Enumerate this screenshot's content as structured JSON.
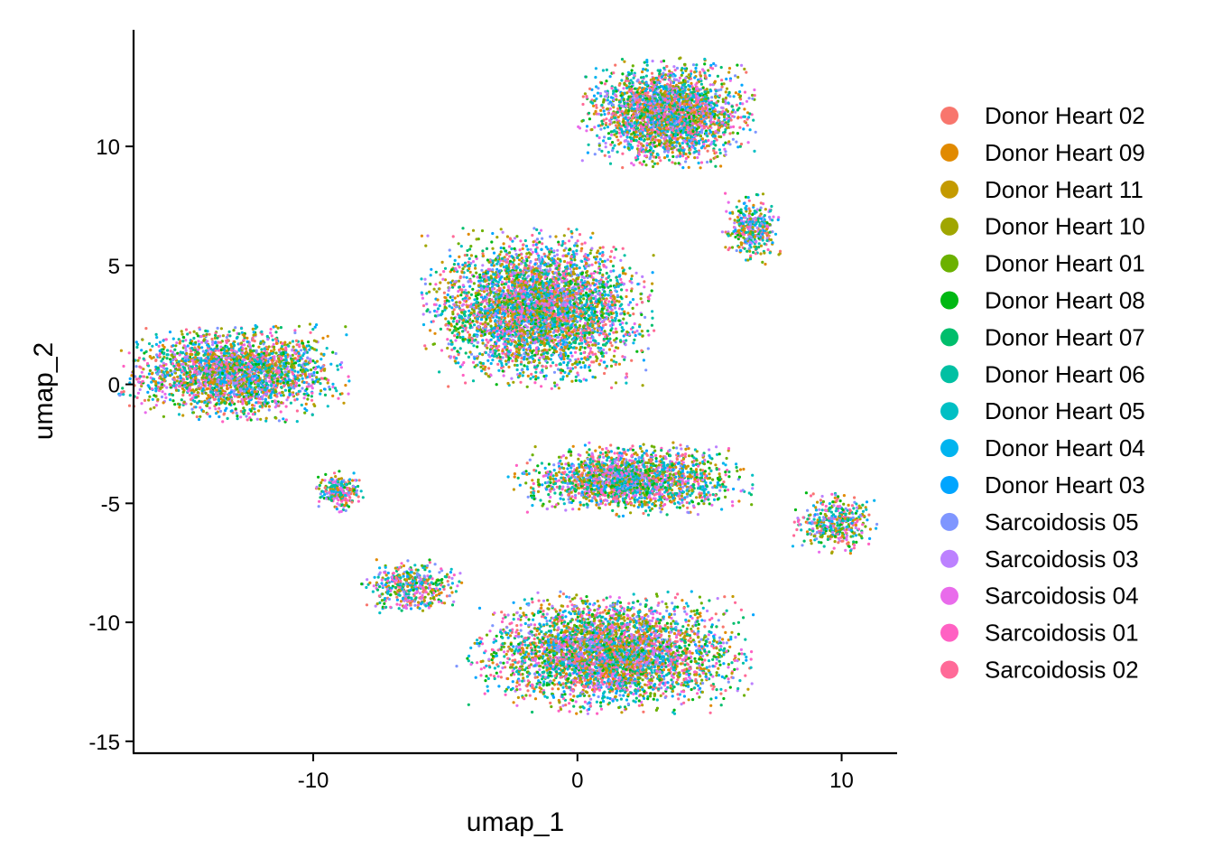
{
  "chart_data": {
    "type": "scatter",
    "title": "",
    "xlabel": "umap_1",
    "ylabel": "umap_2",
    "xlim": [
      -16.8,
      12.1
    ],
    "ylim": [
      -15.5,
      14.9
    ],
    "x_ticks": [
      -10,
      0,
      10
    ],
    "y_ticks": [
      -15,
      -10,
      -5,
      0,
      5,
      10
    ],
    "grid": false,
    "legend_position": "right",
    "series": [
      {
        "name": "Donor Heart 02",
        "color": "#F8766D"
      },
      {
        "name": "Donor Heart 09",
        "color": "#E18A00"
      },
      {
        "name": "Donor Heart 11",
        "color": "#C49A00"
      },
      {
        "name": "Donor Heart 10",
        "color": "#A0A600"
      },
      {
        "name": "Donor Heart 01",
        "color": "#6BB100"
      },
      {
        "name": "Donor Heart 08",
        "color": "#00B813"
      },
      {
        "name": "Donor Heart 07",
        "color": "#00BE6C"
      },
      {
        "name": "Donor Heart 06",
        "color": "#00C0A3"
      },
      {
        "name": "Donor Heart 05",
        "color": "#00BFC4"
      },
      {
        "name": "Donor Heart 04",
        "color": "#00B4EF"
      },
      {
        "name": "Donor Heart 03",
        "color": "#00A5FF"
      },
      {
        "name": "Sarcoidosis 05",
        "color": "#7F96FF"
      },
      {
        "name": "Sarcoidosis 03",
        "color": "#BC81FF"
      },
      {
        "name": "Sarcoidosis 04",
        "color": "#E96BEB"
      },
      {
        "name": "Sarcoidosis 01",
        "color": "#FF61C3"
      },
      {
        "name": "Sarcoidosis 02",
        "color": "#FF6A98"
      }
    ],
    "clusters": [
      {
        "center": [
          -13.0,
          0.5
        ],
        "spread": [
          1.7,
          0.8
        ],
        "n": 2600
      },
      {
        "center": [
          -9.0,
          -4.5
        ],
        "spread": [
          0.35,
          0.35
        ],
        "n": 250
      },
      {
        "center": [
          -6.3,
          -8.5
        ],
        "spread": [
          0.75,
          0.45
        ],
        "n": 450
      },
      {
        "center": [
          -1.5,
          3.2
        ],
        "spread": [
          1.7,
          1.3
        ],
        "n": 4200
      },
      {
        "center": [
          3.4,
          11.4
        ],
        "spread": [
          1.3,
          0.9
        ],
        "n": 2600
      },
      {
        "center": [
          6.6,
          6.5
        ],
        "spread": [
          0.45,
          0.6
        ],
        "n": 350
      },
      {
        "center": [
          2.0,
          -4.0
        ],
        "spread": [
          1.8,
          0.6
        ],
        "n": 2000
      },
      {
        "center": [
          9.8,
          -5.8
        ],
        "spread": [
          0.65,
          0.5
        ],
        "n": 400
      },
      {
        "center": [
          1.2,
          -11.3
        ],
        "spread": [
          2.1,
          1.0
        ],
        "n": 4000
      }
    ]
  }
}
